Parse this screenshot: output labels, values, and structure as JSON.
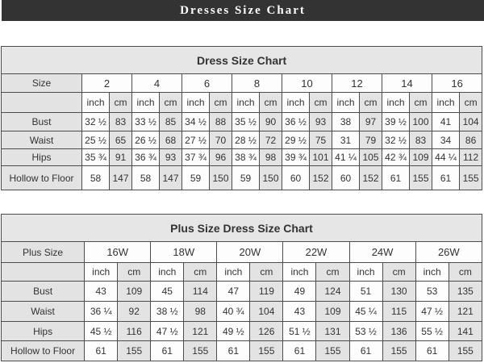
{
  "header": {
    "title": "Dresses Size Chart"
  },
  "tables": [
    {
      "title": "Dress Size Chart",
      "corner_label": "Size",
      "sizes": [
        "2",
        "4",
        "6",
        "8",
        "10",
        "12",
        "14",
        "16"
      ],
      "units": [
        "inch",
        "cm"
      ],
      "rows": [
        {
          "label": "Bust",
          "values": [
            "32 ½",
            "83",
            "33 ½",
            "85",
            "34 ½",
            "88",
            "35 ½",
            "90",
            "36 ½",
            "93",
            "38",
            "97",
            "39 ½",
            "100",
            "41",
            "104"
          ]
        },
        {
          "label": "Waist",
          "values": [
            "25 ½",
            "65",
            "26 ½",
            "68",
            "27 ½",
            "70",
            "28 ½",
            "72",
            "29 ½",
            "75",
            "31",
            "79",
            "32 ½",
            "83",
            "34",
            "86"
          ]
        },
        {
          "label": "Hips",
          "values": [
            "35 ¾",
            "91",
            "36 ¾",
            "93",
            "37 ¾",
            "96",
            "38 ¾",
            "98",
            "39 ¾",
            "101",
            "41 ¼",
            "105",
            "42 ¾",
            "109",
            "44 ¼",
            "112"
          ]
        },
        {
          "label": "Hollow to Floor",
          "values": [
            "58",
            "147",
            "58",
            "147",
            "59",
            "150",
            "59",
            "150",
            "60",
            "152",
            "60",
            "152",
            "61",
            "155",
            "61",
            "155"
          ]
        }
      ]
    },
    {
      "title": "Plus Size Dress Size Chart",
      "corner_label": "Plus Size",
      "sizes": [
        "16W",
        "18W",
        "20W",
        "22W",
        "24W",
        "26W"
      ],
      "units": [
        "inch",
        "cm"
      ],
      "rows": [
        {
          "label": "Bust",
          "values": [
            "43",
            "109",
            "45",
            "114",
            "47",
            "119",
            "49",
            "124",
            "51",
            "130",
            "53",
            "135"
          ]
        },
        {
          "label": "Waist",
          "values": [
            "36 ¼",
            "92",
            "38 ½",
            "98",
            "40 ¾",
            "104",
            "43",
            "109",
            "45 ¼",
            "115",
            "47 ½",
            "121"
          ]
        },
        {
          "label": "Hips",
          "values": [
            "45 ½",
            "116",
            "47 ½",
            "121",
            "49 ½",
            "126",
            "51 ½",
            "131",
            "53 ½",
            "136",
            "55 ½",
            "141"
          ]
        },
        {
          "label": "Hollow to Floor",
          "values": [
            "61",
            "155",
            "61",
            "155",
            "61",
            "155",
            "61",
            "155",
            "61",
            "155",
            "61",
            "155"
          ]
        }
      ]
    }
  ],
  "colors": {
    "header_bar": "#333333",
    "header_text": "#ffffff",
    "cell_shaded": "#e3e3e3",
    "cell_white": "#fdfdfd",
    "grid_border": "#4d4d4d",
    "text": "#333333"
  }
}
